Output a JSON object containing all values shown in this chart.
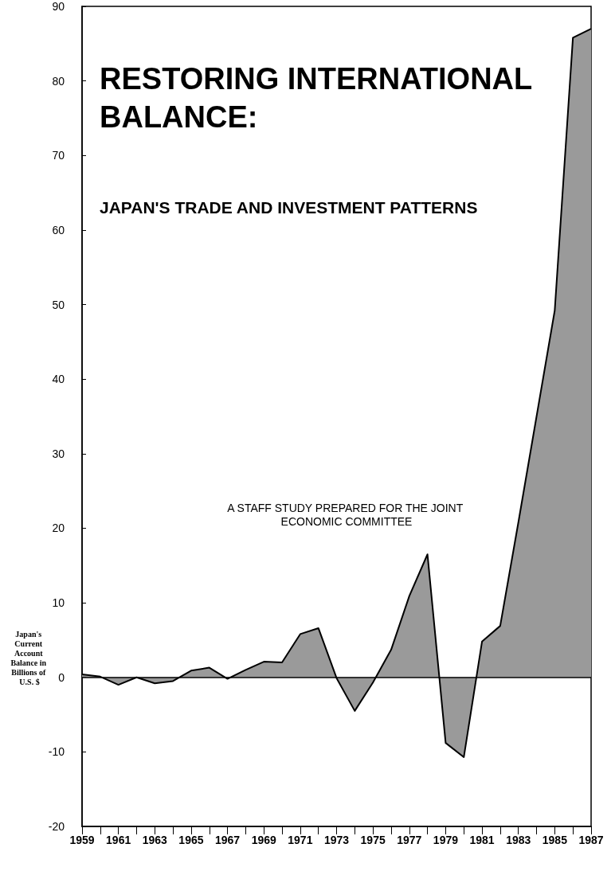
{
  "chart_data": {
    "type": "area",
    "title": "RESTORING INTERNATIONAL BALANCE:",
    "subtitle": "JAPAN'S TRADE AND INVESTMENT PATTERNS",
    "ylabel": "Japan's Current Account Balance in Billions of U.S. $",
    "annotations": [
      "A STAFF STUDY PREPARED FOR THE JOINT ECONOMIC COMMITTEE"
    ],
    "x": [
      1959,
      1960,
      1961,
      1962,
      1963,
      1964,
      1965,
      1966,
      1967,
      1968,
      1969,
      1970,
      1971,
      1972,
      1973,
      1974,
      1975,
      1976,
      1977,
      1978,
      1979,
      1980,
      1981,
      1982,
      1983,
      1984,
      1985,
      1986,
      1987
    ],
    "series": [
      {
        "color": "#9a9a9a",
        "values": [
          0.4,
          0.1,
          -1.0,
          0,
          -0.8,
          -0.5,
          0.9,
          1.3,
          -0.2,
          1.0,
          2.1,
          2.0,
          5.8,
          6.6,
          -0.1,
          -4.5,
          -0.7,
          3.7,
          10.9,
          16.5,
          -8.8,
          -10.7,
          4.8,
          6.9,
          20.8,
          35.0,
          49.2,
          85.8,
          87.0
        ]
      }
    ],
    "xlim": [
      1959,
      1987
    ],
    "xticks": [
      1959,
      {
        "value": 1960,
        "label": null
      },
      1961,
      {
        "value": 1962,
        "label": null
      },
      1963,
      {
        "value": 1964,
        "label": null
      },
      1965,
      {
        "value": 1966,
        "label": null
      },
      1967,
      {
        "value": 1968,
        "label": null
      },
      1969,
      {
        "value": 1970,
        "label": null
      },
      1971,
      {
        "value": 1972,
        "label": null
      },
      1973,
      {
        "value": 1974,
        "label": null
      },
      1975,
      {
        "value": 1976,
        "label": null
      },
      1977,
      {
        "value": 1978,
        "label": null
      },
      1979,
      {
        "value": 1980,
        "label": null
      },
      1981,
      {
        "value": 1982,
        "label": null
      },
      1983,
      {
        "value": 1984,
        "label": null
      },
      1985,
      {
        "value": 1986,
        "label": null
      },
      1987
    ],
    "ylim": [
      -20,
      90
    ],
    "yticks": [
      -20,
      -10,
      0,
      10,
      20,
      30,
      40,
      50,
      60,
      70,
      80,
      90
    ],
    "ref_lines": [
      {
        "axis": "y",
        "value": 0,
        "color": "#000000"
      }
    ],
    "grid": false,
    "marker": "none"
  }
}
